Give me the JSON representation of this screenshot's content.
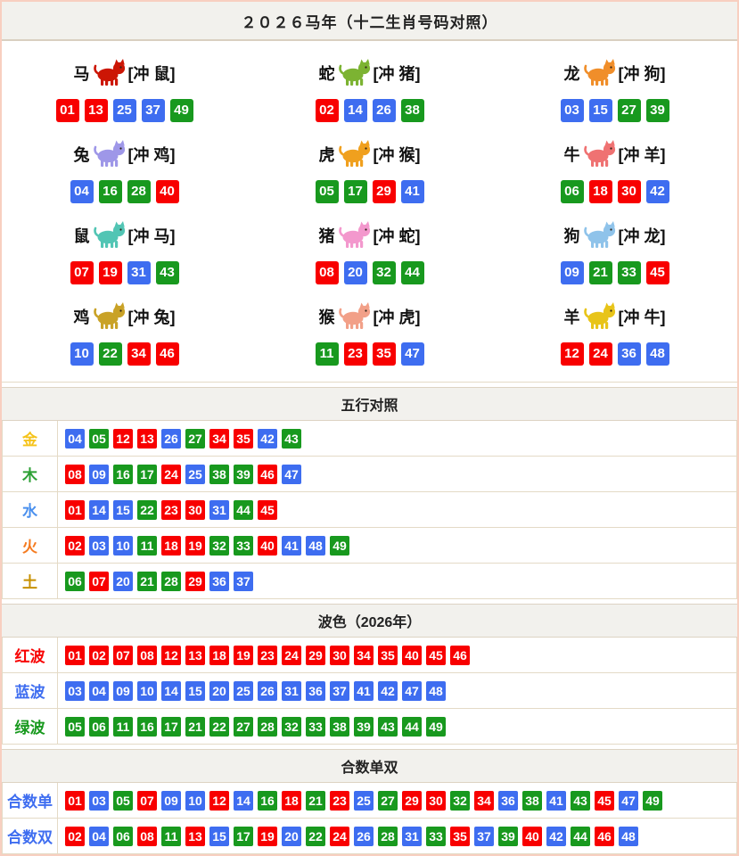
{
  "title": "２０２６马年（十二生肖号码对照）",
  "colors": {
    "ball_red": "#f80000",
    "ball_blue": "#3e6df0",
    "ball_green": "#18991e",
    "page_border": "#f8cfc0",
    "table_border": "#e4dac6",
    "bar_bg": "#f2f1ed"
  },
  "wave_colors": {
    "red": [
      "01",
      "02",
      "07",
      "08",
      "12",
      "13",
      "18",
      "19",
      "23",
      "24",
      "29",
      "30",
      "34",
      "35",
      "40",
      "45",
      "46"
    ],
    "blue": [
      "03",
      "04",
      "09",
      "10",
      "14",
      "15",
      "20",
      "25",
      "26",
      "31",
      "36",
      "37",
      "41",
      "42",
      "47",
      "48"
    ],
    "green": [
      "05",
      "06",
      "11",
      "16",
      "17",
      "21",
      "22",
      "27",
      "28",
      "32",
      "33",
      "38",
      "39",
      "43",
      "44",
      "49"
    ]
  },
  "zodiac": {
    "cells": [
      {
        "name": "马",
        "clash": "[冲 鼠]",
        "animal": "horse",
        "animal_color": "#cc1605",
        "numbers": [
          "01",
          "13",
          "25",
          "37",
          "49"
        ]
      },
      {
        "name": "蛇",
        "clash": "[冲 猪]",
        "animal": "snake",
        "animal_color": "#7cb332",
        "numbers": [
          "02",
          "14",
          "26",
          "38"
        ]
      },
      {
        "name": "龙",
        "clash": "[冲 狗]",
        "animal": "dragon",
        "animal_color": "#f08e2a",
        "numbers": [
          "03",
          "15",
          "27",
          "39"
        ]
      },
      {
        "name": "兔",
        "clash": "[冲 鸡]",
        "animal": "rabbit",
        "animal_color": "#9e97e8",
        "numbers": [
          "04",
          "16",
          "28",
          "40"
        ]
      },
      {
        "name": "虎",
        "clash": "[冲 猴]",
        "animal": "tiger",
        "animal_color": "#f0a01e",
        "numbers": [
          "05",
          "17",
          "29",
          "41"
        ]
      },
      {
        "name": "牛",
        "clash": "[冲 羊]",
        "animal": "ox",
        "animal_color": "#ef7272",
        "numbers": [
          "06",
          "18",
          "30",
          "42"
        ]
      },
      {
        "name": "鼠",
        "clash": "[冲 马]",
        "animal": "rat",
        "animal_color": "#52c5b4",
        "numbers": [
          "07",
          "19",
          "31",
          "43"
        ]
      },
      {
        "name": "猪",
        "clash": "[冲 蛇]",
        "animal": "pig",
        "animal_color": "#f398cd",
        "numbers": [
          "08",
          "20",
          "32",
          "44"
        ]
      },
      {
        "name": "狗",
        "clash": "[冲 龙]",
        "animal": "dog",
        "animal_color": "#8fc3ea",
        "numbers": [
          "09",
          "21",
          "33",
          "45"
        ]
      },
      {
        "name": "鸡",
        "clash": "[冲 兔]",
        "animal": "rooster",
        "animal_color": "#c9a227",
        "numbers": [
          "10",
          "22",
          "34",
          "46"
        ]
      },
      {
        "name": "猴",
        "clash": "[冲 虎]",
        "animal": "monkey",
        "animal_color": "#f2a088",
        "numbers": [
          "11",
          "23",
          "35",
          "47"
        ]
      },
      {
        "name": "羊",
        "clash": "[冲 牛]",
        "animal": "goat",
        "animal_color": "#e8c419",
        "numbers": [
          "12",
          "24",
          "36",
          "48"
        ]
      }
    ]
  },
  "sections": [
    {
      "title": "五行对照",
      "rows": [
        {
          "label": "金",
          "label_color": "#f5c31a",
          "numbers": [
            "04",
            "05",
            "12",
            "13",
            "26",
            "27",
            "34",
            "35",
            "42",
            "43"
          ]
        },
        {
          "label": "木",
          "label_color": "#2da035",
          "numbers": [
            "08",
            "09",
            "16",
            "17",
            "24",
            "25",
            "38",
            "39",
            "46",
            "47"
          ]
        },
        {
          "label": "水",
          "label_color": "#4a90ee",
          "numbers": [
            "01",
            "14",
            "15",
            "22",
            "23",
            "30",
            "31",
            "44",
            "45"
          ]
        },
        {
          "label": "火",
          "label_color": "#f57b20",
          "numbers": [
            "02",
            "03",
            "10",
            "11",
            "18",
            "19",
            "32",
            "33",
            "40",
            "41",
            "48",
            "49"
          ]
        },
        {
          "label": "土",
          "label_color": "#c79102",
          "numbers": [
            "06",
            "07",
            "20",
            "21",
            "28",
            "29",
            "36",
            "37"
          ]
        }
      ]
    },
    {
      "title": "波色（2026年）",
      "rows": [
        {
          "label": "红波",
          "label_color": "#f80000",
          "numbers": [
            "01",
            "02",
            "07",
            "08",
            "12",
            "13",
            "18",
            "19",
            "23",
            "24",
            "29",
            "30",
            "34",
            "35",
            "40",
            "45",
            "46"
          ]
        },
        {
          "label": "蓝波",
          "label_color": "#3e6df0",
          "numbers": [
            "03",
            "04",
            "09",
            "10",
            "14",
            "15",
            "20",
            "25",
            "26",
            "31",
            "36",
            "37",
            "41",
            "42",
            "47",
            "48"
          ]
        },
        {
          "label": "绿波",
          "label_color": "#18991e",
          "numbers": [
            "05",
            "06",
            "11",
            "16",
            "17",
            "21",
            "22",
            "27",
            "28",
            "32",
            "33",
            "38",
            "39",
            "43",
            "44",
            "49"
          ]
        }
      ]
    },
    {
      "title": "合数单双",
      "rows": [
        {
          "label": "合数单",
          "label_color": "#3e6df0",
          "numbers": [
            "01",
            "03",
            "05",
            "07",
            "09",
            "10",
            "12",
            "14",
            "16",
            "18",
            "21",
            "23",
            "25",
            "27",
            "29",
            "30",
            "32",
            "34",
            "36",
            "38",
            "41",
            "43",
            "45",
            "47",
            "49"
          ]
        },
        {
          "label": "合数双",
          "label_color": "#3e6df0",
          "numbers": [
            "02",
            "04",
            "06",
            "08",
            "11",
            "13",
            "15",
            "17",
            "19",
            "20",
            "22",
            "24",
            "26",
            "28",
            "31",
            "33",
            "35",
            "37",
            "39",
            "40",
            "42",
            "44",
            "46",
            "48"
          ]
        }
      ]
    }
  ]
}
